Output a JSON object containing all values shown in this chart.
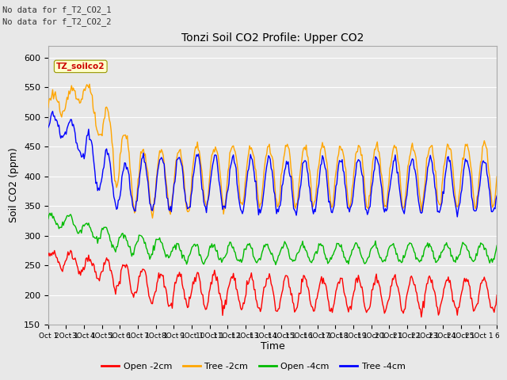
{
  "title": "Tonzi Soil CO2 Profile: Upper CO2",
  "xlabel": "Time",
  "ylabel": "Soil CO2 (ppm)",
  "ylim": [
    150,
    620
  ],
  "yticks": [
    150,
    200,
    250,
    300,
    350,
    400,
    450,
    500,
    550,
    600
  ],
  "top_annotation_line1": "No data for f_T2_CO2_1",
  "top_annotation_line2": "No data for f_T2_CO2_2",
  "dataset_label": "TZ_soilco2",
  "legend_entries": [
    "Open -2cm",
    "Tree -2cm",
    "Open -4cm",
    "Tree -4cm"
  ],
  "colors": {
    "open_2cm": "#ff0000",
    "tree_2cm": "#ffa500",
    "open_4cm": "#00bb00",
    "tree_4cm": "#0000ff"
  },
  "fig_bg_color": "#e8e8e8",
  "plot_bg_color": "#e8e8e8",
  "grid_color": "#ffffff",
  "n_points": 500
}
